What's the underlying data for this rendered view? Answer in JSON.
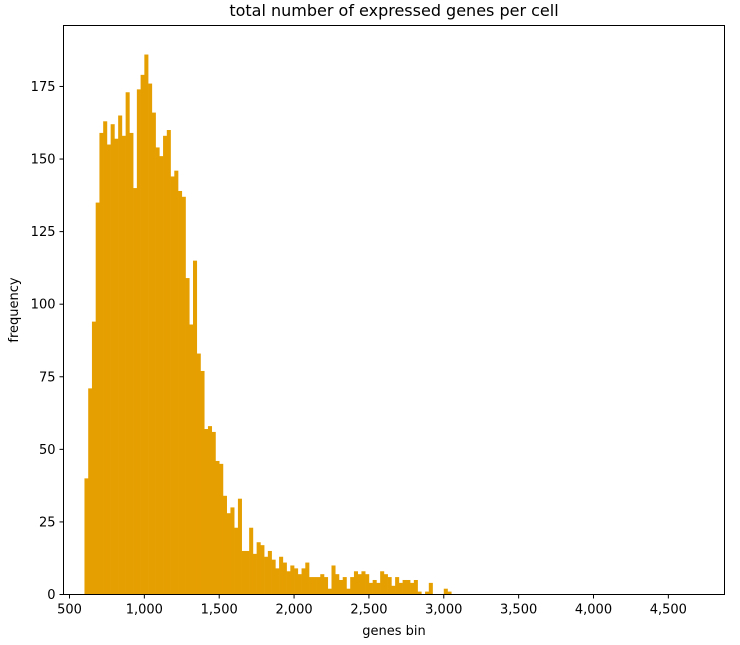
{
  "chart_data": {
    "type": "bar",
    "title": "total number of expressed genes per cell",
    "xlabel": "genes bin",
    "ylabel": "frequency",
    "bar_color": "#E69F00",
    "x_ticks": [
      500,
      1000,
      1500,
      2000,
      2500,
      3000,
      3500,
      4000,
      4500
    ],
    "x_tick_labels": [
      "500",
      "1,000",
      "1,500",
      "2,000",
      "2,500",
      "3,000",
      "3,500",
      "4,000",
      "4,500"
    ],
    "y_ticks": [
      0,
      25,
      50,
      75,
      100,
      125,
      150,
      175
    ],
    "y_tick_labels": [
      "0",
      "25",
      "50",
      "75",
      "100",
      "125",
      "150",
      "175"
    ],
    "xlim": [
      460,
      4875
    ],
    "ylim": [
      0,
      196
    ],
    "grid": false,
    "bin_start": 600,
    "bin_width": 25,
    "values": [
      40,
      71,
      94,
      135,
      159,
      163,
      155,
      162,
      157,
      165,
      158,
      173,
      159,
      140,
      174,
      179,
      186,
      176,
      166,
      154,
      151,
      158,
      160,
      144,
      146,
      139,
      137,
      109,
      93,
      115,
      83,
      77,
      57,
      58,
      56,
      46,
      45,
      34,
      28,
      30,
      23,
      33,
      15,
      15,
      23,
      14,
      18,
      17,
      13,
      15,
      12,
      9,
      13,
      11,
      8,
      10,
      9,
      7,
      9,
      11,
      6,
      6,
      6,
      7,
      6,
      2,
      10,
      7,
      5,
      6,
      2,
      6,
      8,
      7,
      8,
      7,
      4,
      5,
      4,
      8,
      7,
      6,
      3,
      6,
      4,
      5,
      5,
      4,
      5,
      1,
      0,
      1,
      4,
      0,
      0,
      0,
      2,
      1
    ]
  }
}
